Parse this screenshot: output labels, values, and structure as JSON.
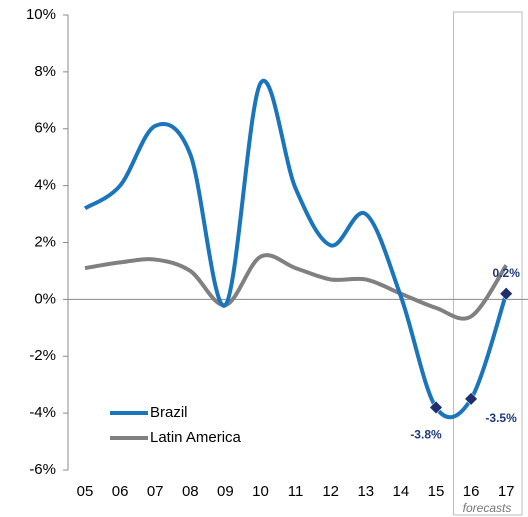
{
  "chart_data": {
    "type": "line",
    "categories": [
      "05",
      "06",
      "07",
      "08",
      "09",
      "10",
      "11",
      "12",
      "13",
      "14",
      "15",
      "16",
      "17"
    ],
    "series": [
      {
        "name": "Brazil",
        "color": "#1a75bc",
        "values": [
          3.2,
          4.0,
          6.1,
          5.1,
          -0.2,
          7.6,
          3.9,
          1.9,
          3.0,
          0.1,
          -3.8,
          -3.5,
          0.2
        ],
        "value_labels": [
          null,
          null,
          null,
          null,
          null,
          null,
          null,
          null,
          null,
          null,
          "-3.8%",
          "-3.5%",
          "0.2%"
        ],
        "marker_color": "#1f2f6b"
      },
      {
        "name": "Latin America",
        "color": "#808080",
        "values": [
          1.1,
          1.3,
          1.4,
          1.0,
          -0.2,
          1.5,
          1.1,
          0.7,
          0.7,
          0.2,
          -0.3,
          -0.6,
          1.2
        ]
      }
    ],
    "ylim": [
      -6,
      10
    ],
    "yticks": [
      {
        "value": -6,
        "label": "-6%"
      },
      {
        "value": -4,
        "label": "-4%"
      },
      {
        "value": -2,
        "label": "-2%"
      },
      {
        "value": 0,
        "label": "0%"
      },
      {
        "value": 2,
        "label": "2%"
      },
      {
        "value": 4,
        "label": "4%"
      },
      {
        "value": 6,
        "label": "6%"
      },
      {
        "value": 8,
        "label": "8%"
      },
      {
        "value": 10,
        "label": "10%"
      }
    ],
    "annotation": "forecasts",
    "legend": "lower-left"
  }
}
